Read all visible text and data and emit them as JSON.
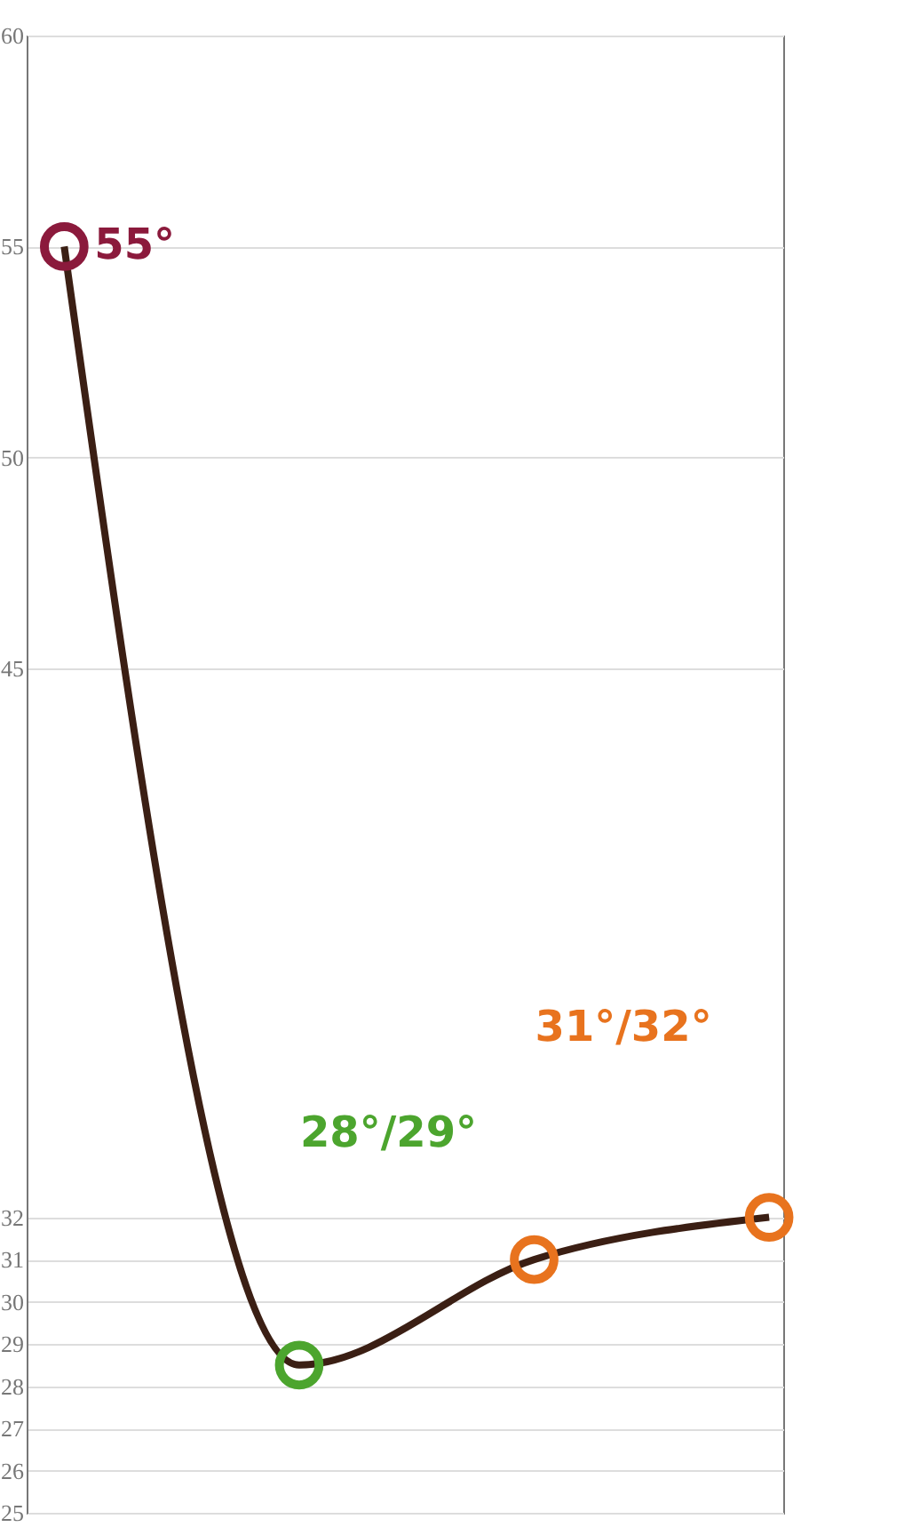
{
  "chart_data": {
    "type": "line",
    "categories": [
      null,
      null,
      null,
      null
    ],
    "series": [
      {
        "color": "#3b1f14",
        "values": [
          55,
          28.5,
          31,
          32
        ]
      }
    ],
    "colors": [
      "#8b1a3c",
      "#4ca52e",
      "#e8731e",
      "#e8731e"
    ],
    "marker": "circle",
    "line_style": "solid",
    "ylim": [
      25,
      60
    ],
    "yticks": [
      25,
      26,
      27,
      28,
      29,
      30,
      31,
      32,
      45,
      50,
      55,
      60
    ],
    "grid": "y",
    "annotations": [
      "55°",
      "28°/29°",
      "31°/32°"
    ]
  }
}
